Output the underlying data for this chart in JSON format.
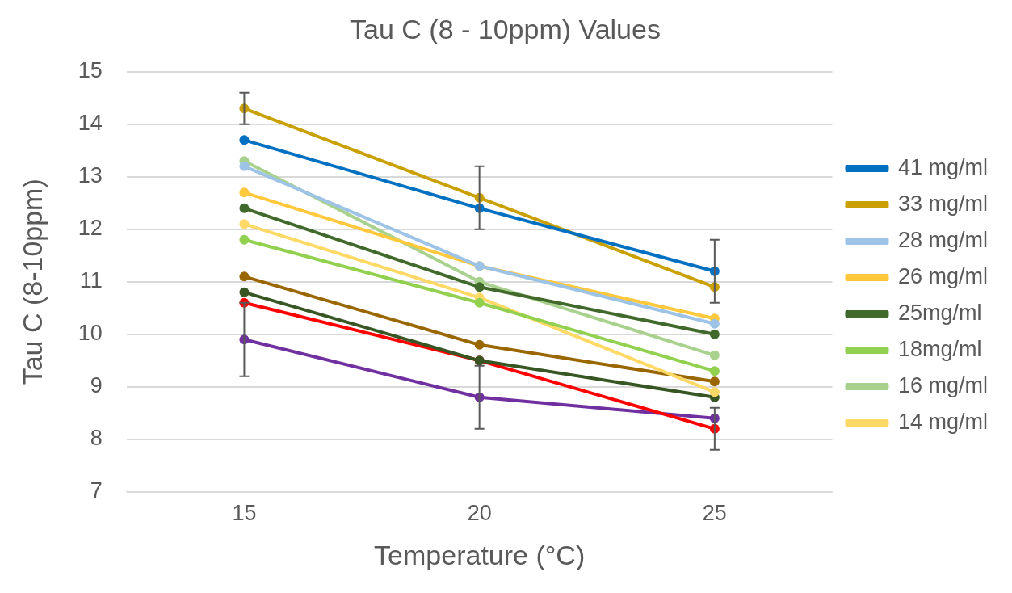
{
  "chart_data": {
    "type": "line",
    "title": "Tau C (8 - 10ppm) Values",
    "xlabel": "Temperature (°C)",
    "ylabel": "Tau C (8-10ppm)",
    "x": [
      15,
      20,
      25
    ],
    "xlim": [
      12.5,
      27.5
    ],
    "xticks": [
      15,
      20,
      25
    ],
    "ylim": [
      7,
      15
    ],
    "yticks": [
      7,
      8,
      9,
      10,
      11,
      12,
      13,
      14,
      15
    ],
    "grid": "y",
    "legend": "right",
    "marker": "circle",
    "line_style": "solid",
    "series": [
      {
        "name": "41 mg/ml",
        "color": "#0070c0",
        "values": [
          13.7,
          12.4,
          11.2
        ],
        "errors": [
          null,
          null,
          0.6
        ]
      },
      {
        "name": "33 mg/ml",
        "color": "#c9a000",
        "values": [
          14.3,
          12.6,
          10.9
        ],
        "errors": [
          0.3,
          0.6,
          null
        ]
      },
      {
        "name": "28 mg/ml",
        "color": "#9dc3e6",
        "values": [
          13.2,
          11.3,
          10.2
        ]
      },
      {
        "name": "26 mg/ml",
        "color": "#ffc83d",
        "values": [
          12.7,
          11.3,
          10.3
        ]
      },
      {
        "name": "25mg/ml",
        "color": "#41692b",
        "values": [
          12.4,
          10.9,
          10.0
        ]
      },
      {
        "name": "18mg/ml",
        "color": "#92d050",
        "values": [
          11.8,
          10.6,
          9.3
        ]
      },
      {
        "name": "16 mg/ml",
        "color": "#a9d18e",
        "values": [
          13.3,
          11.0,
          9.6
        ]
      },
      {
        "name": "14 mg/ml",
        "color": "#ffd966",
        "values": [
          12.1,
          10.7,
          8.9
        ]
      },
      {
        "color": "#996600",
        "values": [
          11.1,
          9.8,
          9.1
        ]
      },
      {
        "color": "#375623",
        "values": [
          10.8,
          9.5,
          8.8
        ]
      },
      {
        "color": "#ff0000",
        "values": [
          10.6,
          9.5,
          8.2
        ],
        "errors": [
          null,
          null,
          0.4
        ]
      },
      {
        "color": "#7030a0",
        "values": [
          9.9,
          8.8,
          8.4
        ],
        "errors": [
          0.7,
          0.6,
          null
        ]
      }
    ]
  }
}
